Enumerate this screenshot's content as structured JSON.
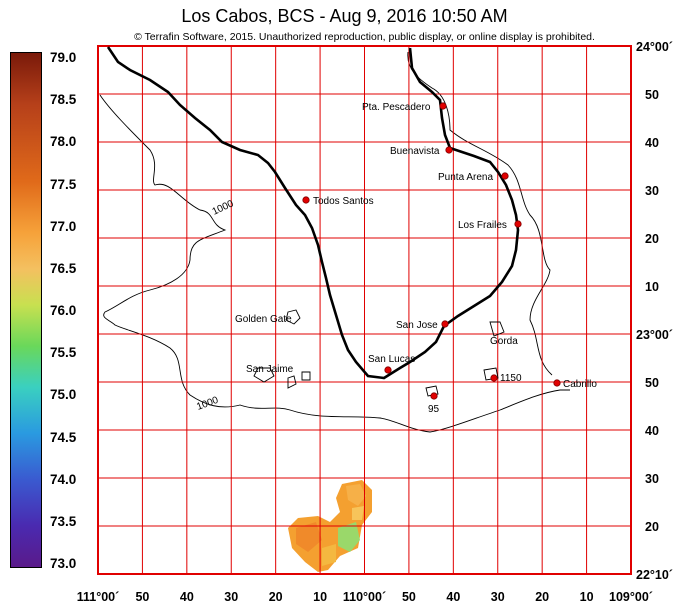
{
  "title": "Los Cabos, BCS - Aug 9, 2016 10:50 AM",
  "copyright": "© Terrafin Software,  2015.  Unauthorized reproduction, public display, or online display is prohibited.",
  "scale": {
    "ticks": [
      "79.0",
      "78.5",
      "78.0",
      "77.5",
      "77.0",
      "76.5",
      "76.0",
      "75.5",
      "75.0",
      "74.5",
      "74.0",
      "73.5",
      "73.0"
    ]
  },
  "right_axis": [
    "24°00´",
    "50",
    "40",
    "30",
    "20",
    "10",
    "23°00´",
    "50",
    "40",
    "30",
    "20",
    "22°10´"
  ],
  "bottom_axis": [
    "111°00´",
    "50",
    "40",
    "30",
    "20",
    "10",
    "110°00´",
    "50",
    "40",
    "30",
    "20",
    "10",
    "109°00´"
  ],
  "places": [
    {
      "id": "pta-pescadero",
      "name": "Pta. Pescadero"
    },
    {
      "id": "buenavista",
      "name": "Buenavista"
    },
    {
      "id": "punta-arena",
      "name": "Punta Arena"
    },
    {
      "id": "todos-santos",
      "name": "Todos Santos"
    },
    {
      "id": "los-frailes",
      "name": "Los Frailes"
    },
    {
      "id": "san-jose",
      "name": "San Jose"
    },
    {
      "id": "san-lucas",
      "name": "San Lucas"
    },
    {
      "id": "cabrillo",
      "name": "Cabrillo"
    }
  ],
  "features": {
    "golden_gate": "Golden Gate",
    "san_jaime": "San Jaime",
    "gorda": "Gorda",
    "bank_1150": "1150",
    "bank_95": "95",
    "contour_1000_a": "1000",
    "contour_1000_b": "1000"
  },
  "colors": {
    "grid": "#e00000",
    "marker": "#e00000",
    "coast": "#000000"
  }
}
